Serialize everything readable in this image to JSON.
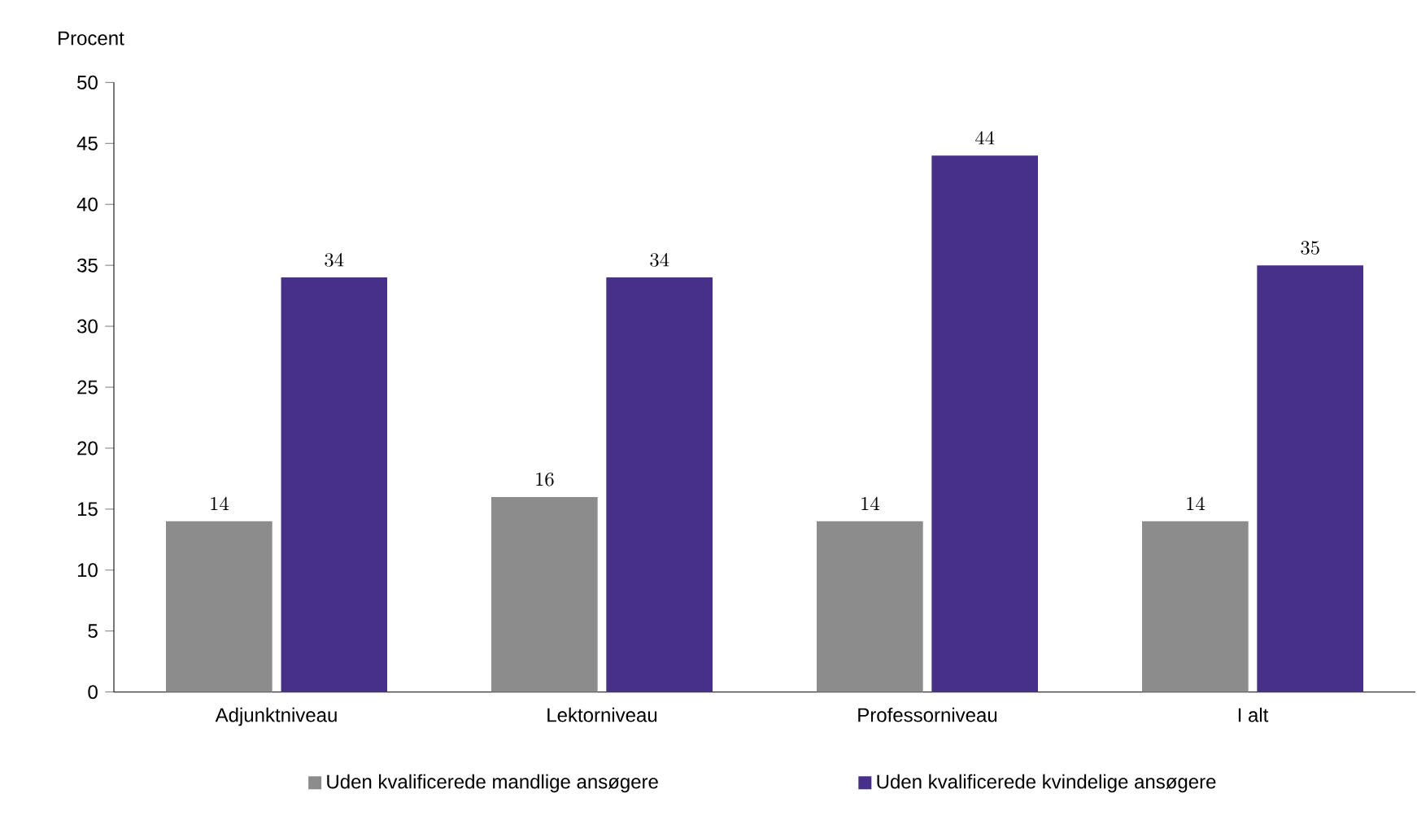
{
  "chart_data": {
    "type": "bar",
    "ylabel": "Procent",
    "categories": [
      "Adjunktniveau",
      "Lektorniveau",
      "Professorniveau",
      "I alt"
    ],
    "series": [
      {
        "name": "Uden kvalificerede mandlige ansøgere",
        "color": "#8c8c8c",
        "values": [
          14,
          16,
          14,
          14
        ]
      },
      {
        "name": "Uden kvalificerede kvindelige ansøgere",
        "color": "#46308a",
        "values": [
          34,
          34,
          44,
          35
        ]
      }
    ],
    "ylim": [
      0,
      50
    ],
    "yticks": [
      0,
      5,
      10,
      15,
      20,
      25,
      30,
      35,
      40,
      45,
      50
    ],
    "data_labels": true,
    "legend": "bottom",
    "grid": false
  }
}
